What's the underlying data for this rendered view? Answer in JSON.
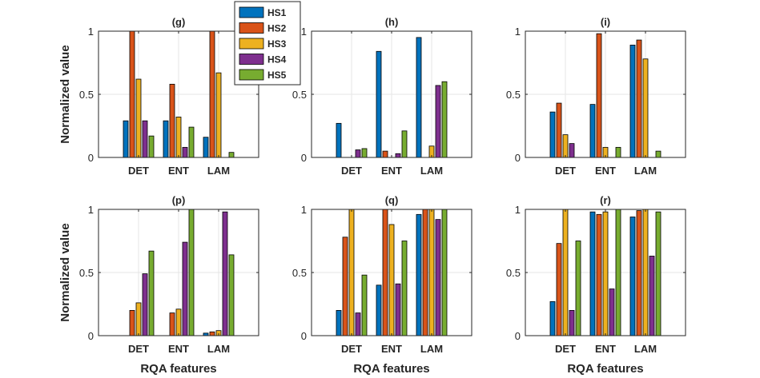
{
  "figure": {
    "xlabel": "RQA features",
    "ylabel": "Normalized value"
  },
  "legend": {
    "placement": "top, between panels (g) and (h)",
    "entries": [
      "HS1",
      "HS2",
      "HS3",
      "HS4",
      "HS5"
    ]
  },
  "colors": {
    "HS1": "#0072BD",
    "HS2": "#D95319",
    "HS3": "#EDB120",
    "HS4": "#7E2F8E",
    "HS5": "#77AC30",
    "grid": "#e6e6e6",
    "axis": "#262626"
  },
  "chart_data": [
    {
      "type": "bar",
      "title": "(g)",
      "categories": [
        "DET",
        "ENT",
        "LAM"
      ],
      "ylim": [
        0,
        1
      ],
      "yticks": [
        "0",
        "0.5",
        "1"
      ],
      "grid": true,
      "ylabel": "Normalized value",
      "xlabel": "",
      "series": [
        {
          "name": "HS1",
          "values": [
            0.29,
            0.29,
            0.16
          ]
        },
        {
          "name": "HS2",
          "values": [
            1.0,
            0.58,
            1.0
          ]
        },
        {
          "name": "HS3",
          "values": [
            0.62,
            0.32,
            0.67
          ]
        },
        {
          "name": "HS4",
          "values": [
            0.29,
            0.08,
            0.0
          ]
        },
        {
          "name": "HS5",
          "values": [
            0.17,
            0.24,
            0.04
          ]
        }
      ]
    },
    {
      "type": "bar",
      "title": "(h)",
      "categories": [
        "DET",
        "ENT",
        "LAM"
      ],
      "ylim": [
        0,
        1
      ],
      "yticks": [
        "0",
        "0.5",
        "1"
      ],
      "grid": true,
      "ylabel": "",
      "xlabel": "",
      "series": [
        {
          "name": "HS1",
          "values": [
            0.27,
            0.84,
            0.95
          ]
        },
        {
          "name": "HS2",
          "values": [
            0.0,
            0.05,
            0.0
          ]
        },
        {
          "name": "HS3",
          "values": [
            0.0,
            0.0,
            0.09
          ]
        },
        {
          "name": "HS4",
          "values": [
            0.06,
            0.03,
            0.57
          ]
        },
        {
          "name": "HS5",
          "values": [
            0.07,
            0.21,
            0.6
          ]
        }
      ]
    },
    {
      "type": "bar",
      "title": "(i)",
      "categories": [
        "DET",
        "ENT",
        "LAM"
      ],
      "ylim": [
        0,
        1
      ],
      "yticks": [
        "0",
        "0.5",
        "1"
      ],
      "grid": true,
      "ylabel": "",
      "xlabel": "",
      "series": [
        {
          "name": "HS1",
          "values": [
            0.36,
            0.42,
            0.89
          ]
        },
        {
          "name": "HS2",
          "values": [
            0.43,
            0.98,
            0.93
          ]
        },
        {
          "name": "HS3",
          "values": [
            0.18,
            0.08,
            0.78
          ]
        },
        {
          "name": "HS4",
          "values": [
            0.11,
            0.0,
            0.0
          ]
        },
        {
          "name": "HS5",
          "values": [
            0.0,
            0.08,
            0.05
          ]
        }
      ]
    },
    {
      "type": "bar",
      "title": "(p)",
      "categories": [
        "DET",
        "ENT",
        "LAM"
      ],
      "ylim": [
        0,
        1
      ],
      "yticks": [
        "0",
        "0.5",
        "1"
      ],
      "grid": true,
      "ylabel": "Normalized value",
      "xlabel": "RQA features",
      "series": [
        {
          "name": "HS1",
          "values": [
            0.0,
            0.0,
            0.02
          ]
        },
        {
          "name": "HS2",
          "values": [
            0.2,
            0.18,
            0.03
          ]
        },
        {
          "name": "HS3",
          "values": [
            0.26,
            0.21,
            0.04
          ]
        },
        {
          "name": "HS4",
          "values": [
            0.49,
            0.74,
            0.98
          ]
        },
        {
          "name": "HS5",
          "values": [
            0.67,
            1.0,
            0.64
          ]
        }
      ]
    },
    {
      "type": "bar",
      "title": "(q)",
      "categories": [
        "DET",
        "ENT",
        "LAM"
      ],
      "ylim": [
        0,
        1
      ],
      "yticks": [
        "0",
        "0.5",
        "1"
      ],
      "grid": true,
      "ylabel": "",
      "xlabel": "RQA features",
      "series": [
        {
          "name": "HS1",
          "values": [
            0.2,
            0.4,
            0.96
          ]
        },
        {
          "name": "HS2",
          "values": [
            0.78,
            1.0,
            1.0
          ]
        },
        {
          "name": "HS3",
          "values": [
            1.0,
            0.88,
            1.0
          ]
        },
        {
          "name": "HS4",
          "values": [
            0.18,
            0.41,
            0.92
          ]
        },
        {
          "name": "HS5",
          "values": [
            0.48,
            0.75,
            1.0
          ]
        }
      ]
    },
    {
      "type": "bar",
      "title": "(r)",
      "categories": [
        "DET",
        "ENT",
        "LAM"
      ],
      "ylim": [
        0,
        1
      ],
      "yticks": [
        "0",
        "0.5",
        "1"
      ],
      "grid": true,
      "ylabel": "",
      "xlabel": "RQA features",
      "series": [
        {
          "name": "HS1",
          "values": [
            0.27,
            0.98,
            0.94
          ]
        },
        {
          "name": "HS2",
          "values": [
            0.73,
            0.96,
            0.99
          ]
        },
        {
          "name": "HS3",
          "values": [
            1.0,
            0.98,
            1.0
          ]
        },
        {
          "name": "HS4",
          "values": [
            0.2,
            0.37,
            0.63
          ]
        },
        {
          "name": "HS5",
          "values": [
            0.75,
            1.0,
            0.98
          ]
        }
      ]
    }
  ]
}
